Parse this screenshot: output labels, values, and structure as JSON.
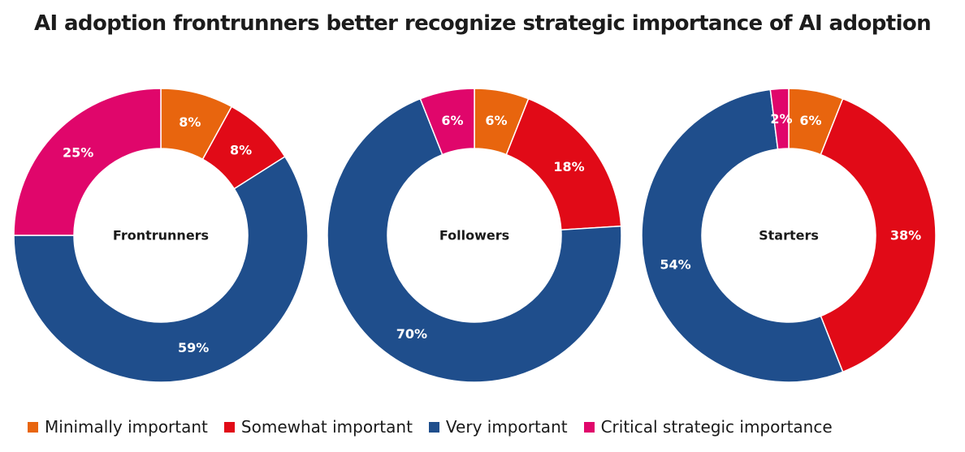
{
  "chart_data": {
    "type": "donut",
    "title": "AI adoption frontrunners better recognize strategic importance of AI adoption",
    "categories": [
      "Minimally important",
      "Somewhat important",
      "Very important",
      "Critical strategic importance"
    ],
    "colors": [
      "#E8650E",
      "#E10A17",
      "#1F4E8C",
      "#E0066B"
    ],
    "series": [
      {
        "name": "Frontrunners",
        "values": [
          8,
          8,
          59,
          25
        ],
        "labels": [
          "8%",
          "8%",
          "59%",
          "25%"
        ]
      },
      {
        "name": "Followers",
        "values": [
          6,
          18,
          70,
          6
        ],
        "labels": [
          "6%",
          "18%",
          "70%",
          "6%"
        ]
      },
      {
        "name": "Starters",
        "values": [
          6,
          38,
          54,
          2
        ],
        "labels": [
          "6%",
          "38%",
          "54%",
          "2%"
        ]
      }
    ],
    "legend_position": "bottom"
  }
}
